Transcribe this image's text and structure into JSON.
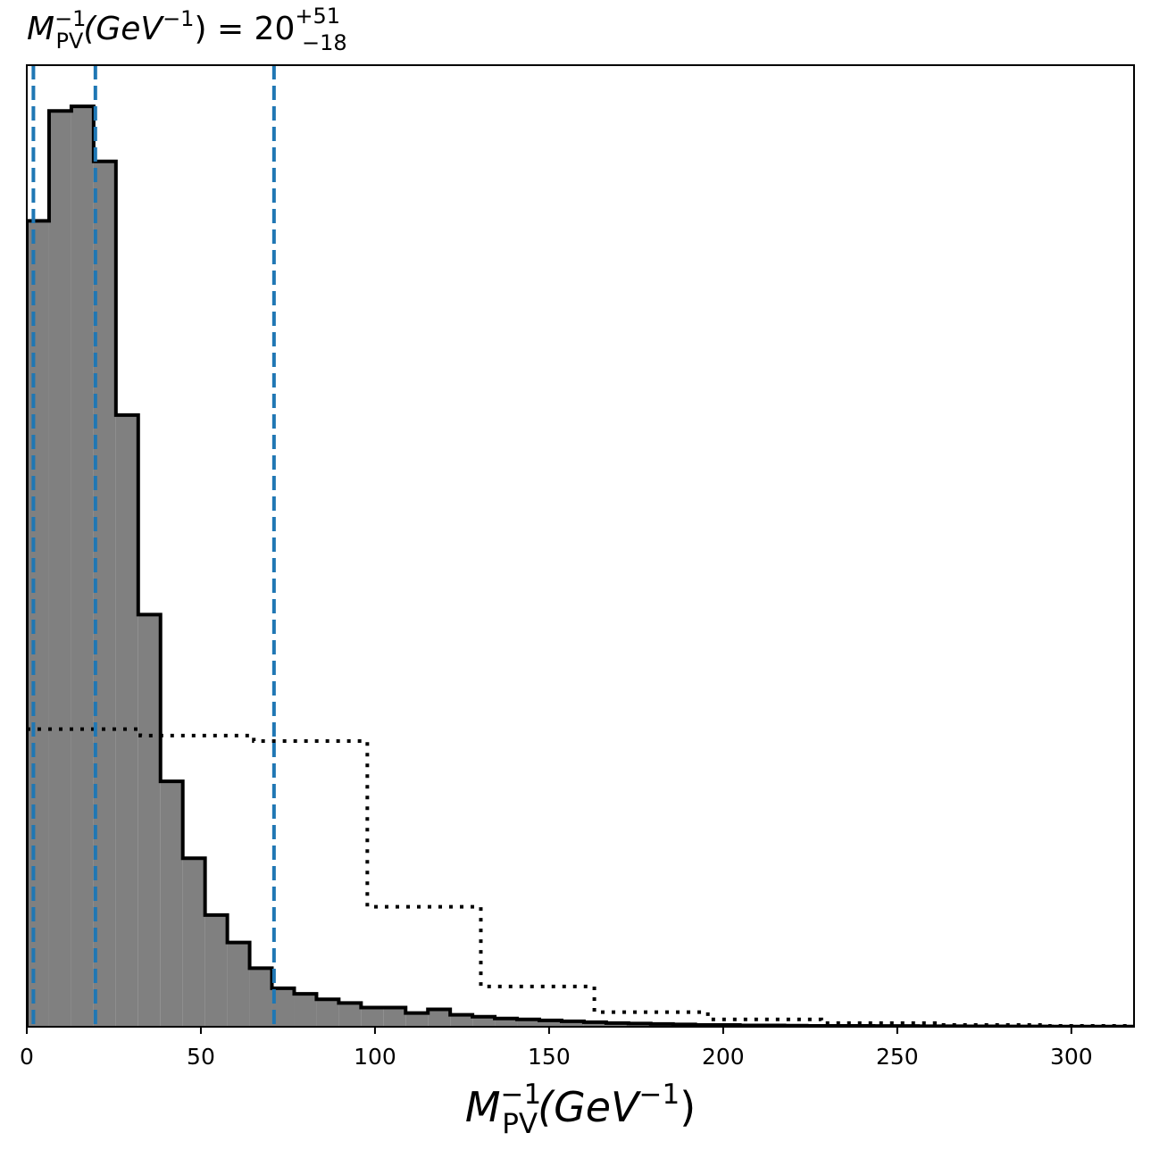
{
  "chart_data": {
    "type": "histogram",
    "title": {
      "base": "M",
      "sup": "−1",
      "sub": "PV",
      "unit_open": "(GeV",
      "unit_sup": "−1",
      "unit_close": ")",
      "equals": " = 20",
      "err_plus": "+51",
      "err_minus": "−18"
    },
    "xlabel": {
      "base": "M",
      "sup": "−1",
      "sub": "PV",
      "unit_open": "(GeV",
      "unit_sup": "−1",
      "unit_close": ")"
    },
    "xlim": [
      0,
      318
    ],
    "ylim": [
      0,
      1.05
    ],
    "grid": false,
    "x_ticks": [
      0,
      50,
      100,
      150,
      200,
      250,
      300
    ],
    "x_tick_labels": [
      "0",
      "50",
      "100",
      "150",
      "200",
      "250",
      "300"
    ],
    "posterior": {
      "bin_edges": [
        0,
        6.4,
        12.8,
        19.2,
        25.6,
        32,
        38.4,
        44.8,
        51.2,
        57.6,
        64,
        70.4,
        76.8,
        83.2,
        89.6,
        96,
        102.4,
        108.8,
        115.2,
        121.6,
        128,
        134.4,
        140.8,
        147.2,
        153.6,
        160,
        166.4,
        172.8,
        179.2,
        185.6,
        192,
        198.4,
        204.8,
        211.2,
        217.6,
        224,
        230.4,
        236.8,
        243.2,
        249.6,
        256,
        262.4,
        268.8,
        275.2,
        281.6,
        288,
        294.4,
        300.8,
        307.2,
        313.6,
        320
      ],
      "counts": [
        0.88,
        1.0,
        1.005,
        0.945,
        0.668,
        0.45,
        0.268,
        0.184,
        0.122,
        0.092,
        0.064,
        0.042,
        0.036,
        0.03,
        0.026,
        0.021,
        0.021,
        0.015,
        0.019,
        0.013,
        0.011,
        0.009,
        0.008,
        0.007,
        0.006,
        0.005,
        0.004,
        0.0035,
        0.003,
        0.0025,
        0.002,
        0.002,
        0.0015,
        0.0015,
        0.0012,
        0.001,
        0.001,
        0.001,
        0.0008,
        0.0008,
        0.0006,
        0.0006,
        0.0005,
        0.0005,
        0.0004,
        0.0004,
        0.0003,
        0.0003,
        0.0003,
        0.0002
      ],
      "fill_color": "#808080",
      "edge_color": "#000000"
    },
    "prior": {
      "bin_edges": [
        0,
        32.6,
        65.2,
        97.8,
        130.4,
        163,
        195.6,
        228.2,
        260.8,
        293.4,
        326
      ],
      "counts": [
        0.325,
        0.318,
        0.312,
        0.131,
        0.044,
        0.016,
        0.008,
        0.004,
        0.002,
        0.001
      ],
      "style": "dotted",
      "color": "#000000"
    },
    "percentile_lines": {
      "values": [
        1.9,
        19.7,
        71
      ],
      "style": "dashed",
      "color": "#1f77b4"
    }
  }
}
